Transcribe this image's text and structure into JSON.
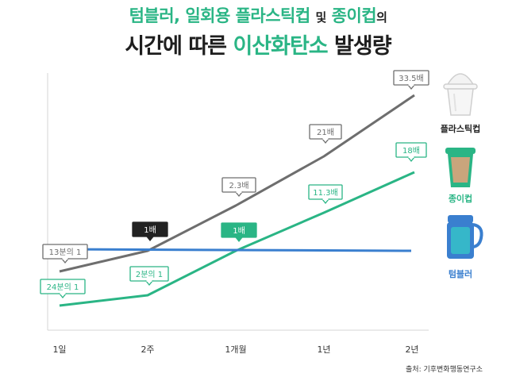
{
  "title": {
    "line1_accent": "텀블러, 일회용 플라스틱컵",
    "line1_connector": "및",
    "line1_accent2": "종이컵",
    "line1_suffix": "의",
    "line2_prefix": "시간에 따른",
    "line2_accent": "이산화탄소",
    "line2_suffix": "발생량"
  },
  "source": "출처: 기후변화행동연구소",
  "colors": {
    "plastic": "#6e6e6e",
    "paper": "#2ab585",
    "tumbler": "#3a7fcf",
    "dark_badge": "#222222",
    "accent": "#2ab585"
  },
  "chart_data": {
    "type": "line",
    "categories": [
      "1일",
      "2주",
      "1개월",
      "1년",
      "2년"
    ],
    "series": [
      {
        "name": "플라스틱컵",
        "values": [
          0.0769,
          1,
          2.3,
          21,
          33.5
        ],
        "labels": [
          "13분의 1",
          "1배",
          "2.3배",
          "21배",
          "33.5배"
        ],
        "color": "#6e6e6e"
      },
      {
        "name": "종이컵",
        "values": [
          0.0417,
          0.5,
          1,
          11.3,
          18
        ],
        "labels": [
          "24분의 1",
          "2분의 1",
          "1배",
          "11.3배",
          "18배"
        ],
        "color": "#2ab585"
      },
      {
        "name": "텀블러",
        "values": [
          1,
          1,
          1,
          1,
          1
        ],
        "labels": [],
        "color": "#3a7fcf"
      }
    ],
    "xlabel": "",
    "ylabel": "",
    "grid": false,
    "legend_position": "right",
    "legend": [
      {
        "name": "플라스틱컵",
        "icon": "plastic-cup-icon"
      },
      {
        "name": "종이컵",
        "icon": "paper-cup-icon"
      },
      {
        "name": "텀블러",
        "icon": "tumbler-icon"
      }
    ]
  }
}
